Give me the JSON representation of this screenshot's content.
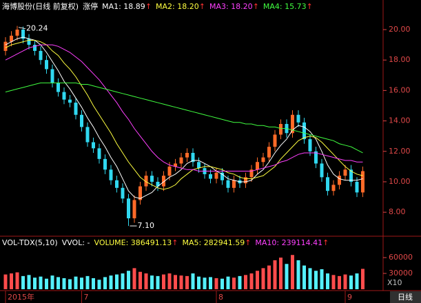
{
  "chart_data": {
    "type": "candlestick",
    "title": "海博股份(日线 前复权)",
    "status": "涨停",
    "arrow": "↑",
    "series": [
      {
        "name": "MA1: 18.89",
        "color": "#ffffff",
        "values": [
          19.0,
          19.2,
          19.4,
          19.5,
          19.4,
          19.3,
          19.0,
          18.5,
          17.9,
          17.3,
          16.6,
          16.1,
          15.5,
          14.9,
          14.2,
          13.6,
          12.9,
          12.3,
          11.6,
          11.0,
          10.2,
          9.4,
          9.0,
          8.9,
          9.1,
          9.3,
          9.7,
          10.0,
          10.3,
          10.5,
          10.8,
          11.2,
          11.4,
          11.4,
          11.2,
          11.0,
          10.7,
          10.5,
          10.2,
          10.1,
          10.0,
          10.0,
          10.1,
          10.5,
          10.8,
          11.3,
          11.9,
          12.4,
          12.8,
          13.4,
          13.7,
          13.6,
          13.3,
          12.8,
          12.0,
          11.1,
          10.5,
          10.2,
          10.1,
          10.1,
          10.1,
          10.2
        ]
      },
      {
        "name": "MA2: 18.20",
        "color": "#ffff40",
        "values": [
          18.8,
          19.0,
          19.1,
          19.2,
          19.3,
          19.3,
          19.2,
          19.0,
          18.6,
          18.3,
          17.8,
          17.4,
          16.9,
          16.3,
          15.7,
          15.0,
          14.4,
          13.8,
          13.2,
          12.5,
          11.9,
          11.3,
          10.8,
          10.3,
          10.0,
          9.8,
          9.6,
          9.5,
          9.6,
          9.8,
          10.2,
          10.5,
          10.8,
          10.9,
          11.0,
          11.0,
          10.9,
          10.8,
          10.6,
          10.5,
          10.3,
          10.2,
          10.2,
          10.3,
          10.4,
          10.7,
          11.0,
          11.5,
          11.9,
          12.3,
          12.7,
          12.9,
          13.0,
          12.9,
          12.6,
          12.2,
          11.8,
          11.4,
          11.0,
          10.7,
          10.5,
          10.4
        ]
      },
      {
        "name": "MA3: 18.20",
        "color": "#ff40ff",
        "values": [
          18.0,
          18.2,
          18.4,
          18.6,
          18.8,
          18.9,
          19.0,
          19.0,
          19.0,
          18.9,
          18.7,
          18.5,
          18.2,
          17.9,
          17.5,
          17.1,
          16.7,
          16.2,
          15.7,
          15.2,
          14.6,
          14.1,
          13.5,
          13.0,
          12.5,
          12.0,
          11.6,
          11.3,
          11.1,
          11.0,
          10.9,
          10.8,
          10.8,
          10.7,
          10.7,
          10.7,
          10.7,
          10.7,
          10.7,
          10.7,
          10.7,
          10.7,
          10.7,
          10.8,
          10.9,
          11.0,
          11.1,
          11.3,
          11.4,
          11.6,
          11.8,
          11.9,
          11.9,
          11.9,
          11.8,
          11.7,
          11.6,
          11.5,
          11.4,
          11.4,
          11.3,
          11.3
        ]
      },
      {
        "name": "MA4: 15.73",
        "color": "#40ff40",
        "values": [
          15.9,
          16.0,
          16.1,
          16.2,
          16.3,
          16.4,
          16.5,
          16.5,
          16.5,
          16.5,
          16.5,
          16.5,
          16.5,
          16.4,
          16.4,
          16.3,
          16.2,
          16.1,
          16.0,
          15.9,
          15.8,
          15.7,
          15.6,
          15.5,
          15.4,
          15.3,
          15.2,
          15.1,
          15.0,
          14.9,
          14.8,
          14.7,
          14.6,
          14.5,
          14.4,
          14.3,
          14.2,
          14.1,
          14.0,
          13.9,
          13.9,
          13.8,
          13.8,
          13.7,
          13.7,
          13.6,
          13.6,
          13.5,
          13.5,
          13.4,
          13.3,
          13.2,
          13.1,
          13.0,
          12.9,
          12.8,
          12.7,
          12.5,
          12.4,
          12.3,
          12.1,
          11.9
        ]
      }
    ],
    "categories": [
      "2015年",
      null,
      null,
      null,
      null,
      null,
      null,
      null,
      null,
      null,
      null,
      null,
      null,
      "7",
      null,
      null,
      null,
      null,
      null,
      null,
      null,
      null,
      null,
      null,
      null,
      null,
      null,
      null,
      null,
      null,
      null,
      null,
      null,
      null,
      null,
      null,
      "8",
      null,
      null,
      null,
      null,
      null,
      null,
      null,
      null,
      null,
      null,
      null,
      null,
      null,
      null,
      null,
      null,
      null,
      null,
      null,
      null,
      null,
      "9",
      null,
      null,
      null
    ],
    "open": [
      18.6,
      19.2,
      19.6,
      20.0,
      19.4,
      19.0,
      18.6,
      18.0,
      17.4,
      16.5,
      15.9,
      15.4,
      15.2,
      14.4,
      13.6,
      12.6,
      12.2,
      11.5,
      10.8,
      10.1,
      9.6,
      8.9,
      7.6,
      8.8,
      9.7,
      10.4,
      10.0,
      9.7,
      10.4,
      11.0,
      11.2,
      11.6,
      11.9,
      11.3,
      10.9,
      10.5,
      10.2,
      10.6,
      10.1,
      9.6,
      10.1,
      9.9,
      10.3,
      10.8,
      11.3,
      11.6,
      12.3,
      13.1,
      13.8,
      13.2,
      14.4,
      13.9,
      12.8,
      12.0,
      11.2,
      10.3,
      9.4,
      9.8,
      10.4,
      10.8,
      10.0,
      9.3
    ],
    "high": [
      19.5,
      19.9,
      20.24,
      20.2,
      19.7,
      19.3,
      18.9,
      18.3,
      17.7,
      16.8,
      16.2,
      15.7,
      15.5,
      14.7,
      13.9,
      12.9,
      12.5,
      11.8,
      11.1,
      10.4,
      9.9,
      9.2,
      9.1,
      10.0,
      10.7,
      10.7,
      10.3,
      10.7,
      11.3,
      11.5,
      11.9,
      12.2,
      12.2,
      11.6,
      11.2,
      10.8,
      10.9,
      10.9,
      10.4,
      10.4,
      10.4,
      10.6,
      11.1,
      11.6,
      11.9,
      12.6,
      13.4,
      14.1,
      14.1,
      14.7,
      14.7,
      14.2,
      13.1,
      12.3,
      11.5,
      10.6,
      10.1,
      10.7,
      11.1,
      11.1,
      10.3,
      11.0
    ],
    "low": [
      18.3,
      18.9,
      19.3,
      19.1,
      18.7,
      18.3,
      17.7,
      17.1,
      16.2,
      15.6,
      15.1,
      14.9,
      14.1,
      13.3,
      12.3,
      11.9,
      11.2,
      10.5,
      9.8,
      9.3,
      8.6,
      7.1,
      7.3,
      8.5,
      9.4,
      9.7,
      9.4,
      9.4,
      10.1,
      10.7,
      10.9,
      11.3,
      11.0,
      10.6,
      10.2,
      9.9,
      9.9,
      9.8,
      9.3,
      9.3,
      9.6,
      9.6,
      10.0,
      10.5,
      11.0,
      11.3,
      12.0,
      12.8,
      12.9,
      12.9,
      13.6,
      12.5,
      11.7,
      10.9,
      10.0,
      9.1,
      9.1,
      9.5,
      10.1,
      9.7,
      9.0,
      9.0
    ],
    "close": [
      19.2,
      19.6,
      20.0,
      19.4,
      19.0,
      18.6,
      18.0,
      17.4,
      16.5,
      15.9,
      15.4,
      15.2,
      14.4,
      13.6,
      12.6,
      12.2,
      11.5,
      10.8,
      10.1,
      9.6,
      8.9,
      7.6,
      8.8,
      9.7,
      10.4,
      10.0,
      9.7,
      10.4,
      11.0,
      11.2,
      11.6,
      11.9,
      11.3,
      10.9,
      10.5,
      10.2,
      10.6,
      10.1,
      9.6,
      10.1,
      9.9,
      10.3,
      10.8,
      11.3,
      11.6,
      12.3,
      13.1,
      13.8,
      13.2,
      14.4,
      13.9,
      12.8,
      12.0,
      11.2,
      10.3,
      9.4,
      9.8,
      10.4,
      10.8,
      10.0,
      9.3,
      10.7
    ],
    "up_color": "#ff6a28",
    "down_color": "#30d8f0",
    "annotations": [
      "20.24",
      "7.10"
    ],
    "ylim": [
      6.56,
      21.04
    ],
    "yticks": [
      {
        "value": 8,
        "label": "8.00"
      },
      {
        "value": 10,
        "label": "10.00"
      },
      {
        "value": 12,
        "label": "12.00"
      },
      {
        "value": 14,
        "label": "14.00"
      },
      {
        "value": 16,
        "label": "16.00"
      },
      {
        "value": 18,
        "label": "18.00"
      },
      {
        "value": 20,
        "label": "20.00"
      }
    ],
    "period": "日线",
    "volume": {
      "label": "VOL-TDX(5,10)",
      "vvol": "VVOL: -",
      "legend": [
        {
          "name": "VOLUME: 386491.13",
          "color": "#ffff40"
        },
        {
          "name": "MA5: 282941.59",
          "color": "#ffff40"
        },
        {
          "name": "MA10: 239114.41",
          "color": "#ff40ff"
        }
      ],
      "values": [
        28000,
        30000,
        32000,
        25000,
        27000,
        22000,
        24000,
        20000,
        26000,
        23000,
        21000,
        19000,
        24000,
        22000,
        25000,
        21000,
        18000,
        23000,
        26000,
        28000,
        30000,
        35000,
        40000,
        33000,
        30000,
        26000,
        25000,
        28000,
        30000,
        27000,
        26000,
        25000,
        30000,
        24000,
        22000,
        23000,
        21000,
        20000,
        24000,
        22000,
        25000,
        27000,
        30000,
        35000,
        40000,
        45000,
        55000,
        60000,
        48000,
        65000,
        55000,
        45000,
        40000,
        35000,
        38000,
        30000,
        27000,
        25000,
        28000,
        26000,
        30000,
        38649
      ],
      "ylim": [
        0,
        98000
      ],
      "yticks": [
        30000,
        60000
      ],
      "unit": "X10",
      "up_color": "#ff4c4c",
      "down_color": "#54f0fc"
    }
  }
}
